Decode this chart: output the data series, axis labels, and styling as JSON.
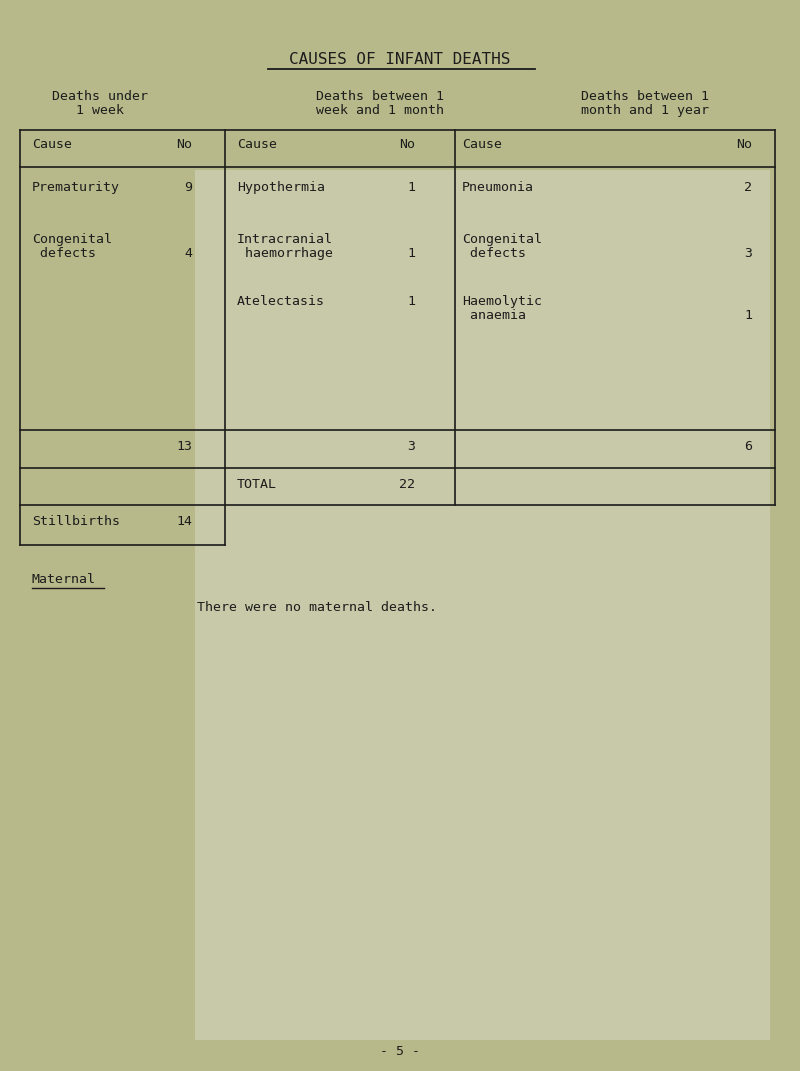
{
  "bg_color": "#b8b98a",
  "inner_bg": "#c8c9a8",
  "title": "CAUSES OF INFANT DEATHS",
  "col1_header_line1": "Deaths under",
  "col1_header_line2": "1 week",
  "col2_header_line1": "Deaths between 1",
  "col2_header_line2": "week and 1 month",
  "col3_header_line1": "Deaths between 1",
  "col3_header_line2": "month and 1 year",
  "col1_rows": [
    {
      "cause": "Prematurity",
      "no": "9"
    },
    {
      "cause": "Congenital\n defects",
      "no": "4"
    }
  ],
  "col2_rows": [
    {
      "cause": "Hypothermia",
      "no": "1"
    },
    {
      "cause": "Intracranial\n haemorrhage",
      "no": "1"
    },
    {
      "cause": "Atelectasis",
      "no": "1"
    }
  ],
  "col3_rows": [
    {
      "cause": "Pneumonia",
      "no": "2"
    },
    {
      "cause": "Congenital\n defects",
      "no": "3"
    },
    {
      "cause": "Haemolytic\n anaemia",
      "no": "1"
    }
  ],
  "col1_total": "13",
  "col2_total": "3",
  "col3_total": "6",
  "total_label": "TOTAL",
  "total_value": "22",
  "stillbirths_label": "Stillbirths",
  "stillbirths_value": "14",
  "maternal_label": "Maternal",
  "maternal_text": "There were no maternal deaths.",
  "page_number": "- 5 -",
  "text_color": "#1c1c1c",
  "line_color": "#1c1c1c",
  "font_size": 9.5,
  "title_font_size": 11.5
}
